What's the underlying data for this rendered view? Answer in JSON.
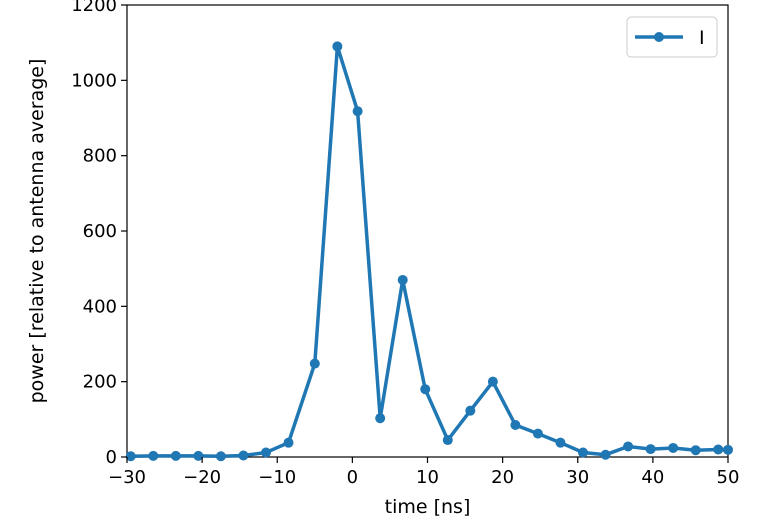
{
  "chart_data": {
    "type": "line",
    "title": "",
    "xlabel": "time [ns]",
    "ylabel": "power [relative to antenna average]",
    "xlim": [
      -30,
      50
    ],
    "ylim": [
      0,
      1200
    ],
    "xticks": [
      -30,
      -20,
      -10,
      0,
      10,
      20,
      30,
      40,
      50
    ],
    "yticks": [
      0,
      200,
      400,
      600,
      800,
      1000,
      1200
    ],
    "xtick_labels": [
      "−30",
      "−20",
      "−10",
      "0",
      "10",
      "20",
      "30",
      "40",
      "50"
    ],
    "ytick_labels": [
      "0",
      "200",
      "400",
      "600",
      "800",
      "1000",
      "1200"
    ],
    "grid": false,
    "legend_position": "top-right",
    "series": [
      {
        "name": "I",
        "color": "#1f77b4",
        "marker": "circle",
        "x": [
          -29.5,
          -26.5,
          -23.5,
          -20.5,
          -17.5,
          -14.5,
          -11.5,
          -8.5,
          -5.0,
          -2.0,
          0.7,
          3.7,
          6.7,
          9.7,
          12.7,
          15.7,
          18.7,
          21.7,
          24.7,
          27.7,
          30.7,
          33.7,
          36.7,
          39.7,
          42.7,
          45.7,
          48.7,
          50.0
        ],
        "y": [
          2,
          3,
          3,
          3,
          2,
          4,
          12,
          38,
          248,
          1090,
          918,
          103,
          470,
          180,
          45,
          123,
          200,
          85,
          62,
          38,
          12,
          6,
          28,
          21,
          24,
          18,
          20,
          19
        ]
      }
    ]
  }
}
